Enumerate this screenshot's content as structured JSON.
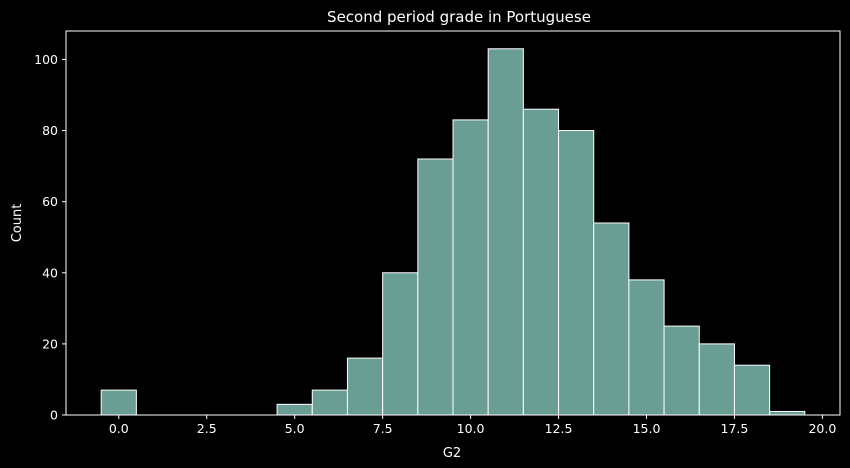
{
  "chart_data": {
    "type": "bar",
    "title": "Second period grade in Portuguese",
    "xlabel": "G2",
    "ylabel": "Count",
    "xlim": [
      -1.5,
      20.5
    ],
    "ylim": [
      0,
      108
    ],
    "x_ticks": [
      0.0,
      2.5,
      5.0,
      7.5,
      10.0,
      12.5,
      15.0,
      17.5,
      20.0
    ],
    "x_tick_labels": [
      "0.0",
      "2.5",
      "5.0",
      "7.5",
      "10.0",
      "12.5",
      "15.0",
      "17.5",
      "20.0"
    ],
    "y_ticks": [
      0,
      20,
      40,
      60,
      80,
      100
    ],
    "y_tick_labels": [
      "0",
      "20",
      "40",
      "60",
      "80",
      "100"
    ],
    "bin_width": 1,
    "bins": [
      {
        "start": -0.5,
        "end": 0.5,
        "count": 7
      },
      {
        "start": 0.5,
        "end": 1.5,
        "count": 0
      },
      {
        "start": 1.5,
        "end": 2.5,
        "count": 0
      },
      {
        "start": 2.5,
        "end": 3.5,
        "count": 0
      },
      {
        "start": 3.5,
        "end": 4.5,
        "count": 0
      },
      {
        "start": 4.5,
        "end": 5.5,
        "count": 3
      },
      {
        "start": 5.5,
        "end": 6.5,
        "count": 7
      },
      {
        "start": 6.5,
        "end": 7.5,
        "count": 16
      },
      {
        "start": 7.5,
        "end": 8.5,
        "count": 40
      },
      {
        "start": 8.5,
        "end": 9.5,
        "count": 72
      },
      {
        "start": 9.5,
        "end": 10.5,
        "count": 83
      },
      {
        "start": 10.5,
        "end": 11.5,
        "count": 103
      },
      {
        "start": 11.5,
        "end": 12.5,
        "count": 86
      },
      {
        "start": 12.5,
        "end": 13.5,
        "count": 80
      },
      {
        "start": 13.5,
        "end": 14.5,
        "count": 54
      },
      {
        "start": 14.5,
        "end": 15.5,
        "count": 38
      },
      {
        "start": 15.5,
        "end": 16.5,
        "count": 25
      },
      {
        "start": 16.5,
        "end": 17.5,
        "count": 20
      },
      {
        "start": 17.5,
        "end": 18.5,
        "count": 14
      },
      {
        "start": 18.5,
        "end": 19.5,
        "count": 1
      }
    ],
    "grid": false,
    "colors": {
      "background": "#000000",
      "bar_fill": "#6a9e94",
      "bar_edge": "#ffffff",
      "axis": "#ffffff",
      "text": "#ffffff"
    }
  }
}
